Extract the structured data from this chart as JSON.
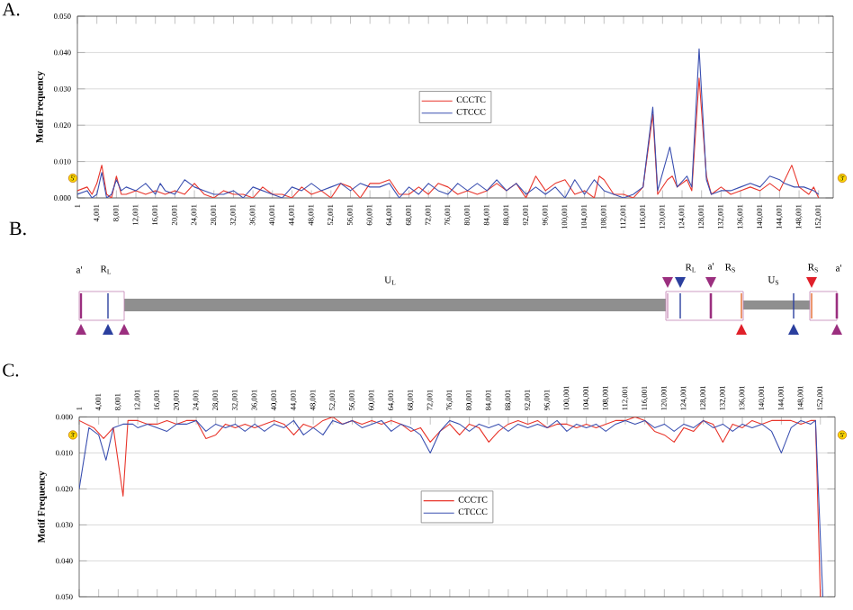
{
  "chart_data": [
    {
      "type": "line",
      "title": "A.",
      "ylabel": "Motif Frequency",
      "grid": "y",
      "legend": "center",
      "xlim": [
        1,
        155001
      ],
      "ylim": [
        0,
        0.05
      ],
      "xticks": [
        1,
        {
          "value": 4001,
          "label": "4,001"
        },
        {
          "value": 8001,
          "label": "8,001"
        },
        {
          "value": 12001,
          "label": "12,001"
        },
        {
          "value": 16001,
          "label": "16,001"
        },
        {
          "value": 20001,
          "label": "20,001"
        },
        {
          "value": 24001,
          "label": "24,001"
        },
        {
          "value": 28001,
          "label": "28,001"
        },
        {
          "value": 32001,
          "label": "32,001"
        },
        {
          "value": 36001,
          "label": "36,001"
        },
        {
          "value": 40001,
          "label": "40,001"
        },
        {
          "value": 44001,
          "label": "44,001"
        },
        {
          "value": 48001,
          "label": "48,001"
        },
        {
          "value": 52001,
          "label": "52,001"
        },
        {
          "value": 56001,
          "label": "56,001"
        },
        {
          "value": 60001,
          "label": "60,001"
        },
        {
          "value": 64001,
          "label": "64,001"
        },
        {
          "value": 68001,
          "label": "68,001"
        },
        {
          "value": 72001,
          "label": "72,001"
        },
        {
          "value": 76001,
          "label": "76,001"
        },
        {
          "value": 80001,
          "label": "80,001"
        },
        {
          "value": 84001,
          "label": "84,001"
        },
        {
          "value": 88001,
          "label": "88,001"
        },
        {
          "value": 92001,
          "label": "92,001"
        },
        {
          "value": 96001,
          "label": "96,001"
        },
        {
          "value": 100001,
          "label": "100,001"
        },
        {
          "value": 104001,
          "label": "104,001"
        },
        {
          "value": 108001,
          "label": "108,001"
        },
        {
          "value": 112001,
          "label": "112,001"
        },
        {
          "value": 116001,
          "label": "116,001"
        },
        {
          "value": 120001,
          "label": "120,001"
        },
        {
          "value": 124001,
          "label": "124,001"
        },
        {
          "value": 128001,
          "label": "128,001"
        },
        {
          "value": 132001,
          "label": "132,001"
        },
        {
          "value": 136001,
          "label": "136,001"
        },
        {
          "value": 140001,
          "label": "140,001"
        },
        {
          "value": 144001,
          "label": "144,001"
        },
        {
          "value": 148001,
          "label": "148,001"
        },
        {
          "value": 152001,
          "label": "152,001"
        }
      ],
      "yticks": [
        {
          "value": 0,
          "label": "0.000"
        },
        {
          "value": 0.01,
          "label": "0.010"
        },
        {
          "value": 0.02,
          "label": "0.020"
        },
        {
          "value": 0.03,
          "label": "0.030"
        },
        {
          "value": 0.04,
          "label": "0.040"
        },
        {
          "value": 0.05,
          "label": "0.050"
        }
      ],
      "annotations": [
        "5'",
        "3'"
      ],
      "series": [
        {
          "name": "CCCTC",
          "color": "#e8352b",
          "x": [
            1,
            2001,
            3001,
            4001,
            5001,
            6001,
            7001,
            8001,
            9001,
            10001,
            12001,
            14001,
            16001,
            18001,
            20001,
            22001,
            24001,
            26001,
            28001,
            30001,
            32001,
            34001,
            36001,
            38001,
            40001,
            42001,
            44001,
            46001,
            48001,
            50001,
            52001,
            54001,
            56001,
            58001,
            60001,
            62001,
            64001,
            66001,
            68001,
            70001,
            72001,
            74001,
            76001,
            78001,
            80001,
            82001,
            84001,
            86001,
            88001,
            90001,
            92001,
            94001,
            96001,
            98001,
            100001,
            102001,
            104001,
            106001,
            107001,
            108001,
            110001,
            112001,
            114001,
            116001,
            118001,
            119001,
            121001,
            122001,
            123001,
            125001,
            126001,
            127501,
            129001,
            130001,
            132001,
            134001,
            136001,
            138001,
            140001,
            142001,
            144001,
            146501,
            148001,
            150001,
            151001,
            152001
          ],
          "values": [
            0.002,
            0.003,
            0.001,
            0.004,
            0.009,
            0.001,
            0,
            0.006,
            0.001,
            0.001,
            0.002,
            0.001,
            0.002,
            0.001,
            0.002,
            0.001,
            0.004,
            0.001,
            0,
            0.002,
            0.001,
            0.001,
            0,
            0.003,
            0.001,
            0.001,
            0,
            0.003,
            0.001,
            0.002,
            0,
            0.004,
            0.003,
            0,
            0.004,
            0.004,
            0.005,
            0.001,
            0.001,
            0.003,
            0.001,
            0.004,
            0.003,
            0.001,
            0.002,
            0.001,
            0.002,
            0.004,
            0.002,
            0.004,
            0,
            0.006,
            0.002,
            0.004,
            0.005,
            0.001,
            0.002,
            0,
            0.006,
            0.005,
            0.001,
            0.001,
            0,
            0.003,
            0.023,
            0.001,
            0.005,
            0.006,
            0.003,
            0.005,
            0.002,
            0.033,
            0.006,
            0.001,
            0.003,
            0.001,
            0.002,
            0.003,
            0.002,
            0.004,
            0.002,
            0.009,
            0.003,
            0.001,
            0.003,
            0
          ]
        },
        {
          "name": "CTCCC",
          "color": "#3a4fb0",
          "x": [
            1,
            2001,
            3001,
            4001,
            5001,
            6001,
            7001,
            8001,
            9001,
            10001,
            12001,
            14001,
            16001,
            17001,
            18001,
            20001,
            22001,
            24001,
            26001,
            28001,
            30001,
            32001,
            34001,
            36001,
            38001,
            40001,
            42001,
            44001,
            46001,
            48001,
            50001,
            52001,
            54001,
            56001,
            58001,
            60001,
            62001,
            64001,
            66001,
            68001,
            70001,
            72001,
            74001,
            76001,
            78001,
            80001,
            82001,
            84001,
            86001,
            88001,
            90001,
            92001,
            94001,
            96001,
            98001,
            100001,
            102001,
            104001,
            106001,
            108001,
            110001,
            112001,
            114001,
            116001,
            118001,
            119001,
            121501,
            123001,
            125001,
            126001,
            127501,
            129001,
            130001,
            132001,
            134001,
            136001,
            138001,
            140001,
            142001,
            144001,
            145001,
            147001,
            149001,
            151001,
            152001
          ],
          "values": [
            0.001,
            0.002,
            0,
            0.001,
            0.007,
            0,
            0.001,
            0.005,
            0.002,
            0.003,
            0.002,
            0.004,
            0.001,
            0.004,
            0.002,
            0.001,
            0.005,
            0.003,
            0.002,
            0.001,
            0.001,
            0.002,
            0,
            0.003,
            0.002,
            0.001,
            0,
            0.003,
            0.002,
            0.004,
            0.002,
            0.003,
            0.004,
            0.002,
            0.004,
            0.003,
            0.003,
            0.004,
            0,
            0.003,
            0.001,
            0.004,
            0.002,
            0.001,
            0.004,
            0.002,
            0.004,
            0.002,
            0.005,
            0.002,
            0.004,
            0.001,
            0.003,
            0.001,
            0.003,
            0,
            0.005,
            0.001,
            0.005,
            0.002,
            0.001,
            0,
            0.001,
            0.003,
            0.025,
            0.002,
            0.014,
            0.003,
            0.006,
            0.003,
            0.041,
            0.005,
            0.001,
            0.002,
            0.002,
            0.003,
            0.004,
            0.003,
            0.006,
            0.005,
            0.004,
            0.003,
            0.003,
            0.002,
            0.001
          ]
        }
      ]
    },
    {
      "type": "other",
      "title": "B.",
      "annotations": [
        "a'",
        "R$_{L}$",
        "U$_{L}$",
        "R$_{L}$",
        "a'",
        "R$_{S}$",
        "U$_{S}$",
        "R$_{S}$",
        "a'"
      ]
    },
    {
      "type": "line",
      "title": "C.",
      "ylabel": "Motif Frequency",
      "grid": "y",
      "legend": "center",
      "xlim": [
        1,
        155001
      ],
      "ylim": [
        0.05,
        0
      ],
      "xticks": [
        1,
        {
          "value": 4001,
          "label": "4,001"
        },
        {
          "value": 8001,
          "label": "8,001"
        },
        {
          "value": 12001,
          "label": "12,001"
        },
        {
          "value": 16001,
          "label": "16,001"
        },
        {
          "value": 20001,
          "label": "20,001"
        },
        {
          "value": 24001,
          "label": "24,001"
        },
        {
          "value": 28001,
          "label": "28,001"
        },
        {
          "value": 32001,
          "label": "32,001"
        },
        {
          "value": 36001,
          "label": "36,001"
        },
        {
          "value": 40001,
          "label": "40,001"
        },
        {
          "value": 44001,
          "label": "44,001"
        },
        {
          "value": 48001,
          "label": "48,001"
        },
        {
          "value": 52001,
          "label": "52,001"
        },
        {
          "value": 56001,
          "label": "56,001"
        },
        {
          "value": 60001,
          "label": "60,001"
        },
        {
          "value": 64001,
          "label": "64,001"
        },
        {
          "value": 68001,
          "label": "68,001"
        },
        {
          "value": 72001,
          "label": "72,001"
        },
        {
          "value": 76001,
          "label": "76,001"
        },
        {
          "value": 80001,
          "label": "80,001"
        },
        {
          "value": 84001,
          "label": "84,001"
        },
        {
          "value": 88001,
          "label": "88,001"
        },
        {
          "value": 92001,
          "label": "92,001"
        },
        {
          "value": 96001,
          "label": "96,001"
        },
        {
          "value": 100001,
          "label": "100,001"
        },
        {
          "value": 104001,
          "label": "104,001"
        },
        {
          "value": 108001,
          "label": "108,001"
        },
        {
          "value": 112001,
          "label": "112,001"
        },
        {
          "value": 116001,
          "label": "116,001"
        },
        {
          "value": 120001,
          "label": "120,001"
        },
        {
          "value": 124001,
          "label": "124,001"
        },
        {
          "value": 128001,
          "label": "128,001"
        },
        {
          "value": 132001,
          "label": "132,001"
        },
        {
          "value": 136001,
          "label": "136,001"
        },
        {
          "value": 140001,
          "label": "140,001"
        },
        {
          "value": 144001,
          "label": "144,001"
        },
        {
          "value": 148001,
          "label": "148,001"
        },
        {
          "value": 152001,
          "label": "152,001"
        }
      ],
      "yticks": [
        {
          "value": 0,
          "label": "0.000"
        },
        {
          "value": 0.01,
          "label": "0.010"
        },
        {
          "value": 0.02,
          "label": "0.020"
        },
        {
          "value": 0.03,
          "label": "0.030"
        },
        {
          "value": 0.04,
          "label": "0.040"
        },
        {
          "value": 0.05,
          "label": "0.050"
        }
      ],
      "annotations": [
        "3'",
        "5'"
      ],
      "series": [
        {
          "name": "CCCTC",
          "color": "#e8352b",
          "x": [
            1,
            3001,
            5001,
            7001,
            9001,
            10001,
            12001,
            14001,
            16001,
            18001,
            20001,
            22001,
            24001,
            26001,
            28001,
            30001,
            32001,
            34001,
            36001,
            38001,
            40001,
            42001,
            44001,
            46001,
            48001,
            50001,
            52001,
            54001,
            56001,
            58001,
            60001,
            62001,
            64001,
            66001,
            68001,
            70001,
            72001,
            74001,
            76001,
            78001,
            80001,
            82001,
            84001,
            86001,
            88001,
            90001,
            92001,
            94001,
            96001,
            98001,
            100001,
            102001,
            104001,
            106001,
            108001,
            110001,
            112001,
            114001,
            116001,
            118001,
            120001,
            122001,
            124001,
            126001,
            128001,
            130001,
            132001,
            134001,
            136001,
            138001,
            140001,
            142001,
            144001,
            146001,
            148001,
            150001,
            151001,
            152001
          ],
          "values": [
            0.001,
            0.003,
            0.006,
            0.003,
            0.022,
            0.001,
            0.001,
            0.002,
            0.002,
            0.001,
            0.002,
            0.001,
            0.001,
            0.006,
            0.005,
            0.002,
            0.003,
            0.002,
            0.003,
            0.002,
            0.001,
            0.002,
            0.005,
            0.002,
            0.003,
            0.001,
            0,
            0.002,
            0.001,
            0.002,
            0.001,
            0.002,
            0.001,
            0.002,
            0.004,
            0.003,
            0.007,
            0.004,
            0.002,
            0.005,
            0.002,
            0.003,
            0.007,
            0.004,
            0.002,
            0.001,
            0.002,
            0.001,
            0.003,
            0.002,
            0.002,
            0.003,
            0.002,
            0.003,
            0.002,
            0.001,
            0.001,
            0,
            0.001,
            0.004,
            0.005,
            0.007,
            0.003,
            0.004,
            0.001,
            0.002,
            0.007,
            0.002,
            0.003,
            0.001,
            0.002,
            0.001,
            0.001,
            0.001,
            0.002,
            0.001,
            0.001,
            0.05
          ]
        },
        {
          "name": "CTCCC",
          "color": "#3a4fb0",
          "x": [
            1,
            2001,
            4001,
            5501,
            7001,
            9001,
            11001,
            12001,
            14001,
            16001,
            18001,
            20001,
            22001,
            24001,
            26001,
            28001,
            30001,
            32001,
            34001,
            36001,
            38001,
            40001,
            42001,
            44001,
            46001,
            48001,
            50001,
            52001,
            54001,
            56001,
            58001,
            60001,
            62001,
            64001,
            66001,
            68001,
            70001,
            72001,
            74001,
            76001,
            78001,
            80001,
            82001,
            84001,
            86001,
            88001,
            90001,
            92001,
            94001,
            96001,
            98001,
            100001,
            102001,
            104001,
            106001,
            108001,
            110001,
            112001,
            114001,
            116001,
            118001,
            120001,
            122001,
            124001,
            126001,
            128001,
            130001,
            132001,
            134001,
            136001,
            138001,
            140001,
            142001,
            144001,
            146001,
            148001,
            150001,
            151001,
            152501
          ],
          "values": [
            0.02,
            0.003,
            0.005,
            0.012,
            0.003,
            0.002,
            0.002,
            0.003,
            0.002,
            0.003,
            0.004,
            0.002,
            0.002,
            0.001,
            0.004,
            0.002,
            0.003,
            0.002,
            0.004,
            0.002,
            0.004,
            0.002,
            0.003,
            0.001,
            0.005,
            0.003,
            0.005,
            0.001,
            0.002,
            0.001,
            0.003,
            0.002,
            0.001,
            0.004,
            0.002,
            0.003,
            0.005,
            0.01,
            0.004,
            0.001,
            0.002,
            0.004,
            0.002,
            0.003,
            0.002,
            0.004,
            0.002,
            0.003,
            0.002,
            0.003,
            0.001,
            0.004,
            0.002,
            0.003,
            0.002,
            0.004,
            0.002,
            0.001,
            0.002,
            0.001,
            0.003,
            0.002,
            0.004,
            0.002,
            0.003,
            0.001,
            0.003,
            0.002,
            0.004,
            0.002,
            0.003,
            0.002,
            0.004,
            0.01,
            0.003,
            0.001,
            0.002,
            0.001,
            0.05
          ]
        }
      ]
    }
  ]
}
